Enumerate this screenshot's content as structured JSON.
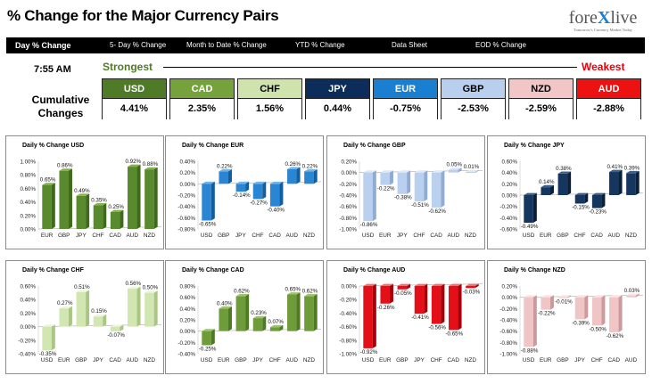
{
  "header": {
    "title": "% Change for the Major Currency Pairs",
    "logo_text": "forexlive",
    "logo_tagline": "Tomorrow's Currency Market Today"
  },
  "nav": {
    "items": [
      {
        "label": "Day % Change",
        "active": true
      },
      {
        "label": "5- Day % Change",
        "active": false
      },
      {
        "label": "Month to Date % Change",
        "active": false
      },
      {
        "label": "YTD % Change",
        "active": false
      },
      {
        "label": "Data Sheet",
        "active": false
      },
      {
        "label": "EOD % Change",
        "active": false
      }
    ]
  },
  "summary": {
    "time": "7:55 AM",
    "strongest_label": "Strongest",
    "weakest_label": "Weakest",
    "cumulative_label": "Cumulative Changes",
    "currencies": [
      {
        "name": "USD",
        "value": "4.41%",
        "color": "#4f7a28",
        "text_color": "#ffffff"
      },
      {
        "name": "CAD",
        "value": "2.35%",
        "color": "#76a23b",
        "text_color": "#ffffff"
      },
      {
        "name": "CHF",
        "value": "1.56%",
        "color": "#cfe4ad",
        "text_color": "#000000"
      },
      {
        "name": "JPY",
        "value": "0.44%",
        "color": "#0c2d5a",
        "text_color": "#ffffff"
      },
      {
        "name": "EUR",
        "value": "-0.75%",
        "color": "#1a7fd1",
        "text_color": "#ffffff"
      },
      {
        "name": "GBP",
        "value": "-2.53%",
        "color": "#b8d0ee",
        "text_color": "#000000"
      },
      {
        "name": "NZD",
        "value": "-2.59%",
        "color": "#f2c6c6",
        "text_color": "#000000"
      },
      {
        "name": "AUD",
        "value": "-2.88%",
        "color": "#ee1111",
        "text_color": "#ffffff"
      }
    ]
  },
  "chart_data": [
    {
      "type": "bar",
      "title": "Daily % Change USD",
      "categories": [
        "EUR",
        "GBP",
        "JPY",
        "CHF",
        "CAD",
        "AUD",
        "NZD"
      ],
      "values": [
        0.65,
        0.86,
        0.49,
        0.35,
        0.25,
        0.92,
        0.88
      ],
      "labels": [
        "0.65%",
        "0.86%",
        "0.49%",
        "0.35%",
        "0.25%",
        "0.92%",
        "0.88%"
      ],
      "ylim": [
        0,
        1.0
      ],
      "ticks": [
        "0.00%",
        "0.20%",
        "0.40%",
        "0.60%",
        "0.80%",
        "1.00%"
      ],
      "colors": {
        "front": "#5a8a2e",
        "top": "#87b34c",
        "side": "#3e6a1b"
      }
    },
    {
      "type": "bar",
      "title": "Daily % Change EUR",
      "categories": [
        "USD",
        "GBP",
        "JPY",
        "CHF",
        "CAD",
        "AUD",
        "NZD"
      ],
      "values": [
        -0.65,
        0.22,
        -0.14,
        -0.27,
        -0.4,
        0.26,
        0.22
      ],
      "labels": [
        "-0.65%",
        "0.22%",
        "-0.14%",
        "-0.27%",
        "-0.40%",
        "0.26%",
        "0.22%"
      ],
      "ylim": [
        -0.8,
        0.4
      ],
      "ticks": [
        "-0.80%",
        "-0.60%",
        "-0.40%",
        "-0.20%",
        "0.00%",
        "0.20%",
        "0.40%"
      ],
      "colors": {
        "front": "#2a86d2",
        "top": "#6fb3ea",
        "side": "#135e9e"
      }
    },
    {
      "type": "bar",
      "title": "Daily % Change GBP",
      "categories": [
        "USD",
        "EUR",
        "JPY",
        "CHF",
        "CAD",
        "AUD",
        "NZD"
      ],
      "values": [
        -0.86,
        -0.22,
        -0.38,
        -0.51,
        -0.62,
        0.05,
        0.01
      ],
      "labels": [
        "-0.86%",
        "-0.22%",
        "-0.38%",
        "-0.51%",
        "-0.62%",
        "0.05%",
        "0.01%"
      ],
      "ylim": [
        -1.0,
        0.2
      ],
      "ticks": [
        "-1.00%",
        "-0.80%",
        "-0.60%",
        "-0.40%",
        "-0.20%",
        "0.00%",
        "0.20%"
      ],
      "colors": {
        "front": "#b9d0ee",
        "top": "#dde9f8",
        "side": "#90acd4"
      }
    },
    {
      "type": "bar",
      "title": "Daily % Change JPY",
      "categories": [
        "USD",
        "EUR",
        "GBP",
        "CHF",
        "CAD",
        "AUD",
        "NZD"
      ],
      "values": [
        -0.49,
        0.14,
        0.38,
        -0.15,
        -0.23,
        0.41,
        0.39
      ],
      "labels": [
        "-0.49%",
        "0.14%",
        "0.38%",
        "-0.15%",
        "-0.23%",
        "0.41%",
        "0.39%"
      ],
      "ylim": [
        -0.6,
        0.6
      ],
      "ticks": [
        "-0.60%",
        "-0.40%",
        "-0.20%",
        "0.00%",
        "0.20%",
        "0.40%",
        "0.60%"
      ],
      "colors": {
        "front": "#15365f",
        "top": "#3e5f8c",
        "side": "#0a1f3a"
      }
    },
    {
      "type": "bar",
      "title": "Daily % Change CHF",
      "categories": [
        "USD",
        "EUR",
        "GBP",
        "JPY",
        "CAD",
        "AUD",
        "NZD"
      ],
      "values": [
        -0.35,
        0.27,
        0.51,
        0.15,
        -0.07,
        0.56,
        0.5
      ],
      "labels": [
        "-0.35%",
        "0.27%",
        "0.51%",
        "0.15%",
        "-0.07%",
        "0.56%",
        "0.50%"
      ],
      "ylim": [
        -0.4,
        0.6
      ],
      "ticks": [
        "-0.40%",
        "-0.20%",
        "0.00%",
        "0.20%",
        "0.40%",
        "0.60%"
      ],
      "colors": {
        "front": "#d2e6b1",
        "top": "#ecf5dd",
        "side": "#a9c683"
      }
    },
    {
      "type": "bar",
      "title": "Daily % Change CAD",
      "categories": [
        "USD",
        "EUR",
        "GBP",
        "JPY",
        "CHF",
        "AUD",
        "NZD"
      ],
      "values": [
        -0.25,
        0.4,
        0.62,
        0.23,
        0.07,
        0.65,
        0.62
      ],
      "labels": [
        "-0.25%",
        "0.40%",
        "0.62%",
        "0.23%",
        "0.07%",
        "0.65%",
        "0.62%"
      ],
      "ylim": [
        -0.4,
        0.8
      ],
      "ticks": [
        "-0.40%",
        "-0.20%",
        "0.00%",
        "0.20%",
        "0.40%",
        "0.60%",
        "0.80%"
      ],
      "colors": {
        "front": "#6f9c3a",
        "top": "#9cc468",
        "side": "#4f7a24"
      }
    },
    {
      "type": "bar",
      "title": "Daily % Change AUD",
      "categories": [
        "USD",
        "EUR",
        "GBP",
        "JPY",
        "CHF",
        "CAD",
        "NZD"
      ],
      "values": [
        -0.92,
        -0.26,
        -0.05,
        -0.41,
        -0.56,
        -0.65,
        -0.03
      ],
      "labels": [
        "-0.92%",
        "-0.26%",
        "-0.05%",
        "-0.41%",
        "-0.56%",
        "-0.65%",
        "-0.03%"
      ],
      "ylim": [
        -1.0,
        0.0
      ],
      "ticks": [
        "-1.00%",
        "-0.80%",
        "-0.60%",
        "-0.40%",
        "-0.20%",
        "0.00%"
      ],
      "colors": {
        "front": "#e3101a",
        "top": "#ff6a6a",
        "side": "#a80008"
      }
    },
    {
      "type": "bar",
      "title": "Daily % Change NZD",
      "categories": [
        "USD",
        "EUR",
        "GBP",
        "JPY",
        "CHF",
        "CAD",
        "AUD"
      ],
      "values": [
        -0.88,
        -0.22,
        -0.01,
        -0.39,
        -0.5,
        -0.62,
        0.03
      ],
      "labels": [
        "-0.88%",
        "-0.22%",
        "-0.01%",
        "-0.39%",
        "-0.50%",
        "-0.62%",
        "0.03%"
      ],
      "ylim": [
        -1.0,
        0.2
      ],
      "ticks": [
        "-1.00%",
        "-0.80%",
        "-0.60%",
        "-0.40%",
        "-0.20%",
        "0.00%",
        "0.20%"
      ],
      "colors": {
        "front": "#f0c5c6",
        "top": "#fae3e3",
        "side": "#cc9a9c"
      }
    }
  ]
}
